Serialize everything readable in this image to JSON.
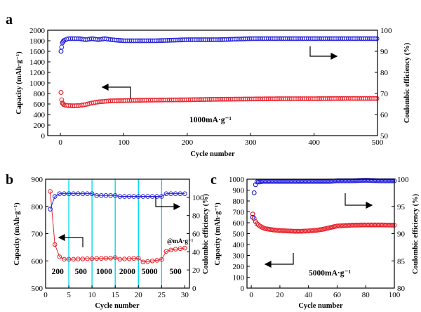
{
  "chart_data": [
    {
      "panel": "a",
      "type": "scatter",
      "xlabel": "Cycle number",
      "ylabel_left": "Capacity (mAh·g⁻¹)",
      "ylabel_right": "Coulombic efficiency (%)",
      "xlim": [
        -20,
        500
      ],
      "ylim_left": [
        0,
        2000
      ],
      "ylim_right": [
        50,
        100
      ],
      "xticks": [
        "0",
        "100",
        "200",
        "300",
        "400",
        "500"
      ],
      "yticks_left": [
        "0",
        "200",
        "400",
        "600",
        "800",
        "1000",
        "1200",
        "1400",
        "1600",
        "1800",
        "2000"
      ],
      "yticks_right": [
        "50",
        "60",
        "70",
        "80",
        "90",
        "100"
      ],
      "annotation": "1000mA·g⁻¹",
      "series": [
        {
          "axis": "left",
          "marker": "open-circle",
          "color": "#e8202a",
          "x": [
            1,
            2,
            3,
            5,
            8,
            12,
            20,
            30,
            40,
            50,
            60,
            70,
            80,
            100,
            120,
            150,
            200,
            250,
            300,
            350,
            400,
            450,
            500
          ],
          "values": [
            820,
            680,
            620,
            590,
            575,
            570,
            565,
            570,
            590,
            620,
            640,
            650,
            660,
            665,
            670,
            675,
            680,
            690,
            695,
            700,
            700,
            705,
            705
          ]
        },
        {
          "axis": "right",
          "marker": "open-circle",
          "color": "#2420d8",
          "x": [
            1,
            2,
            3,
            5,
            8,
            12,
            20,
            30,
            40,
            50,
            60,
            70,
            80,
            100,
            120,
            150,
            200,
            250,
            300,
            350,
            400,
            450,
            500
          ],
          "values": [
            90,
            92,
            94,
            95,
            95.5,
            96,
            96,
            96,
            95.5,
            96,
            95.5,
            96,
            95.5,
            95,
            95,
            95,
            95.5,
            95.5,
            96,
            96,
            96,
            96,
            96
          ]
        }
      ]
    },
    {
      "panel": "b",
      "type": "scatter",
      "xlabel": "Cycle number",
      "ylabel_left": "Capacity (mAh·g⁻¹)",
      "ylabel_right": "Coulombic efficiency (%)",
      "xlim": [
        0,
        31
      ],
      "ylim_left": [
        500,
        900
      ],
      "ylim_right": [
        0,
        120
      ],
      "xticks": [
        "0",
        "5",
        "10",
        "15",
        "20",
        "25",
        "30"
      ],
      "yticks_left": [
        "500",
        "600",
        "700",
        "800",
        "900"
      ],
      "yticks_right": [
        "0",
        "20",
        "40",
        "60",
        "80",
        "100"
      ],
      "rate_labels": [
        "200",
        "500",
        "1000",
        "2000",
        "5000",
        "500"
      ],
      "rate_unit": "@mA·g⁻¹",
      "series": [
        {
          "axis": "left",
          "marker": "open-circle",
          "color": "#e8202a",
          "x": [
            1,
            2,
            3,
            4,
            5,
            6,
            7,
            8,
            9,
            10,
            11,
            12,
            13,
            14,
            15,
            16,
            17,
            18,
            19,
            20,
            21,
            22,
            23,
            24,
            25,
            26,
            27,
            28,
            29,
            30
          ],
          "values": [
            855,
            660,
            615,
            606,
            606,
            606,
            607,
            607,
            608,
            608,
            609,
            609,
            610,
            610,
            612,
            606,
            607,
            608,
            609,
            610,
            596,
            598,
            600,
            602,
            605,
            635,
            640,
            643,
            645,
            647
          ]
        },
        {
          "axis": "right",
          "marker": "open-circle",
          "color": "#2420d8",
          "x": [
            1,
            2,
            3,
            4,
            5,
            6,
            7,
            8,
            9,
            10,
            11,
            12,
            13,
            14,
            15,
            16,
            17,
            18,
            19,
            20,
            21,
            22,
            23,
            24,
            25,
            26,
            27,
            28,
            29,
            30
          ],
          "values": [
            87,
            101,
            104,
            104,
            104,
            104,
            104,
            104,
            104,
            104,
            102,
            102,
            102,
            102,
            102,
            101,
            101,
            101,
            101,
            101,
            101,
            101,
            101,
            101,
            101,
            104,
            104,
            104,
            104,
            104
          ]
        }
      ]
    },
    {
      "panel": "c",
      "type": "scatter",
      "xlabel": "Cycle number",
      "ylabel_left": "Capacity (mAh·g⁻¹)",
      "ylabel_right": "Coulombic efficiency (%)",
      "xlim": [
        -3,
        100
      ],
      "ylim_left": [
        0,
        1000
      ],
      "ylim_right": [
        80,
        100
      ],
      "xticks": [
        "0",
        "20",
        "40",
        "60",
        "80",
        "100"
      ],
      "yticks_left": [
        "0",
        "100",
        "200",
        "300",
        "400",
        "500",
        "600",
        "700",
        "800",
        "900",
        "1000"
      ],
      "yticks_right": [
        "80",
        "85",
        "90",
        "95",
        "100"
      ],
      "annotation": "5000mA·g⁻¹",
      "series": [
        {
          "axis": "left",
          "marker": "open-circle",
          "color": "#e8202a",
          "x": [
            1,
            2,
            3,
            4,
            6,
            8,
            10,
            15,
            20,
            25,
            30,
            35,
            40,
            45,
            50,
            55,
            60,
            70,
            80,
            90,
            100
          ],
          "values": [
            680,
            640,
            610,
            590,
            570,
            555,
            545,
            535,
            528,
            525,
            522,
            522,
            525,
            530,
            540,
            555,
            570,
            578,
            580,
            580,
            578
          ]
        },
        {
          "axis": "right",
          "marker": "open-circle",
          "color": "#2420d8",
          "x": [
            1,
            2,
            3,
            4,
            6,
            8,
            10,
            15,
            20,
            25,
            30,
            35,
            40,
            45,
            50,
            55,
            60,
            70,
            80,
            90,
            100
          ],
          "values": [
            93,
            97.5,
            99,
            99.5,
            99.5,
            99.6,
            99.6,
            99.6,
            99.6,
            99.6,
            99.6,
            99.6,
            99.6,
            99.6,
            99.6,
            99.6,
            99.7,
            99.7,
            99.8,
            99.7,
            99.7
          ]
        }
      ]
    }
  ]
}
